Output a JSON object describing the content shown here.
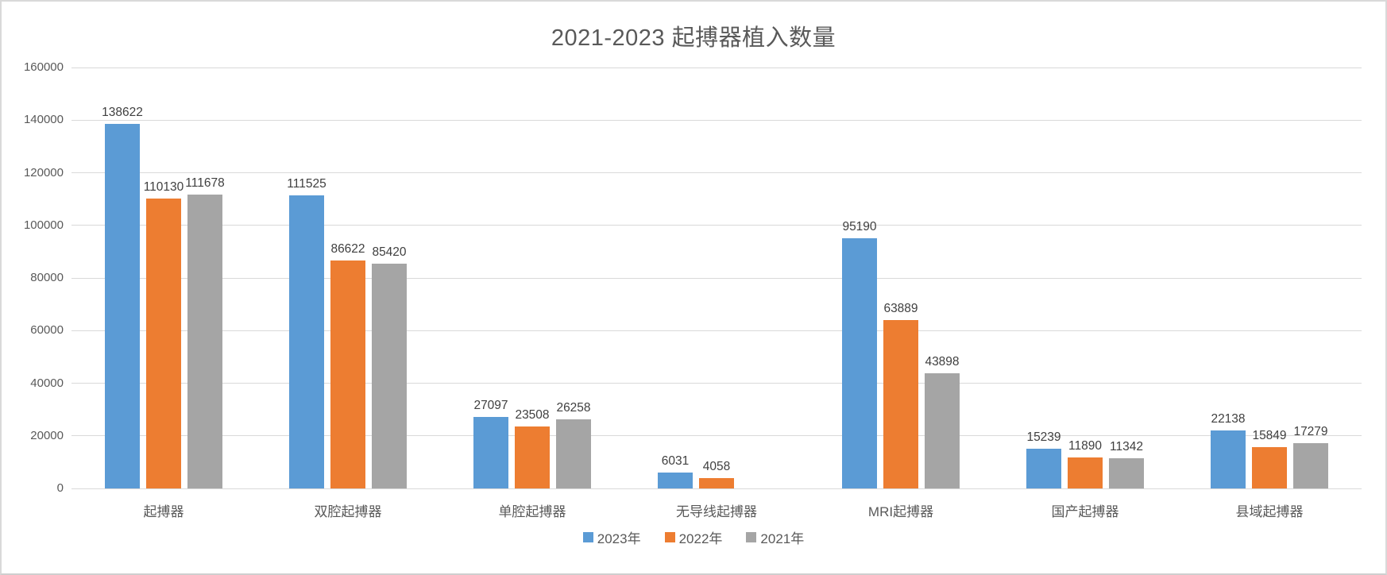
{
  "title": "2021-2023 起搏器植入数量",
  "colors": {
    "series_2023": "#5B9BD5",
    "series_2022": "#ED7D31",
    "series_2021": "#A5A5A5",
    "gridline": "#D9D9D9",
    "axis_text": "#595959",
    "data_label_text": "#3F3F3F",
    "background": "#FFFFFF"
  },
  "chart_data": {
    "type": "bar",
    "title": "2021-2023 起搏器植入数量",
    "categories": [
      "起搏器",
      "双腔起搏器",
      "单腔起搏器",
      "无导线起搏器",
      "MRI起搏器",
      "国产起搏器",
      "县域起搏器"
    ],
    "series": [
      {
        "name": "2023年",
        "color": "#5B9BD5",
        "values": [
          138622,
          111525,
          27097,
          6031,
          95190,
          15239,
          22138
        ]
      },
      {
        "name": "2022年",
        "color": "#ED7D31",
        "values": [
          110130,
          86622,
          23508,
          4058,
          63889,
          11890,
          15849
        ]
      },
      {
        "name": "2021年",
        "color": "#A5A5A5",
        "values": [
          111678,
          85420,
          26258,
          null,
          43898,
          11342,
          17279
        ]
      }
    ],
    "xlabel": "",
    "ylabel": "",
    "ylim": [
      0,
      160000
    ],
    "yticks": [
      0,
      20000,
      40000,
      60000,
      80000,
      100000,
      120000,
      140000,
      160000
    ],
    "grid": true,
    "data_labels": true,
    "legend_position": "bottom"
  }
}
